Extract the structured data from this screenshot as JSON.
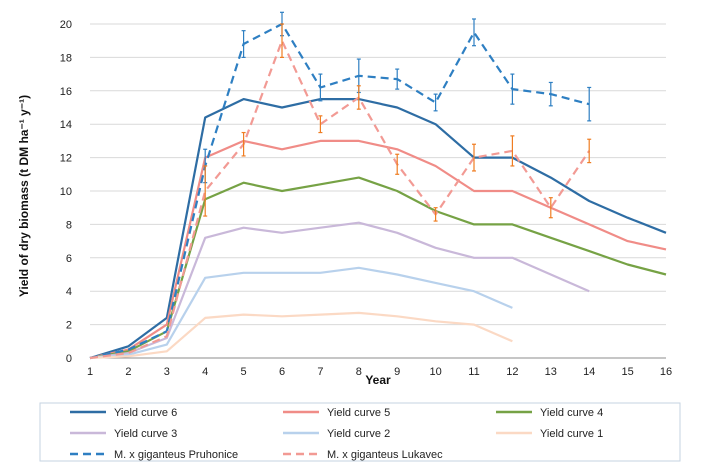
{
  "chart_data": {
    "type": "line",
    "xlabel": "Year",
    "ylabel": "Yield of dry biomass (t DM ha⁻¹ y⁻¹)",
    "xlim": [
      1,
      16
    ],
    "ylim": [
      0,
      20
    ],
    "x_ticks": [
      1,
      2,
      3,
      4,
      5,
      6,
      7,
      8,
      9,
      10,
      11,
      12,
      13,
      14,
      15,
      16
    ],
    "y_ticks": [
      0,
      2,
      4,
      6,
      8,
      10,
      12,
      14,
      16,
      18,
      20
    ],
    "grid": "horizontal",
    "legend_placement": "bottom",
    "series": [
      {
        "name": "Yield curve 6",
        "color": "#2e6da4",
        "dash": "solid",
        "x": [
          1,
          2,
          3,
          4,
          5,
          6,
          7,
          8,
          9,
          10,
          11,
          12,
          13,
          14,
          15,
          16
        ],
        "y": [
          0,
          0.7,
          2.4,
          14.4,
          15.5,
          15.0,
          15.5,
          15.5,
          15.0,
          14.0,
          12.0,
          12.0,
          10.8,
          9.4,
          8.4,
          7.5
        ]
      },
      {
        "name": "Yield curve 5",
        "color": "#f08c87",
        "dash": "solid",
        "x": [
          1,
          2,
          3,
          4,
          5,
          6,
          7,
          8,
          9,
          10,
          11,
          12,
          13,
          14,
          15,
          16
        ],
        "y": [
          0,
          0.5,
          2.0,
          12.0,
          13.0,
          12.5,
          13.0,
          13.0,
          12.5,
          11.5,
          10.0,
          10.0,
          9.0,
          8.0,
          7.0,
          6.5
        ]
      },
      {
        "name": "Yield curve 4",
        "color": "#76a245",
        "dash": "solid",
        "x": [
          1,
          2,
          3,
          4,
          5,
          6,
          7,
          8,
          9,
          10,
          11,
          12,
          13,
          14,
          15,
          16
        ],
        "y": [
          0,
          0.4,
          1.6,
          9.5,
          10.5,
          10.0,
          10.4,
          10.8,
          10.0,
          8.8,
          8.0,
          8.0,
          7.2,
          6.4,
          5.6,
          5.0
        ]
      },
      {
        "name": "Yield curve 3",
        "color": "#c9b8d9",
        "dash": "solid",
        "x": [
          1,
          2,
          3,
          4,
          5,
          6,
          7,
          8,
          9,
          10,
          11,
          12,
          13,
          14
        ],
        "y": [
          0,
          0.3,
          1.2,
          7.2,
          7.8,
          7.5,
          7.8,
          8.1,
          7.5,
          6.6,
          6.0,
          6.0,
          5.0,
          4.0
        ]
      },
      {
        "name": "Yield curve 2",
        "color": "#b8d1ec",
        "dash": "solid",
        "x": [
          1,
          2,
          3,
          4,
          5,
          6,
          7,
          8,
          9,
          10,
          11,
          12
        ],
        "y": [
          0,
          0.2,
          0.8,
          4.8,
          5.1,
          5.1,
          5.1,
          5.4,
          5.0,
          4.5,
          4.0,
          3.0
        ]
      },
      {
        "name": "Yield curve 1",
        "color": "#fbd9c4",
        "dash": "solid",
        "x": [
          1,
          2,
          3,
          4,
          5,
          6,
          7,
          8,
          9,
          10,
          11,
          12
        ],
        "y": [
          0,
          0.1,
          0.4,
          2.4,
          2.6,
          2.5,
          2.6,
          2.7,
          2.5,
          2.2,
          2.0,
          1.0
        ]
      },
      {
        "name": "M. x giganteus Pruhonice",
        "color": "#2e7fc2",
        "dash": "dashed",
        "error_color": "#2e7fc2",
        "x": [
          1,
          2,
          3,
          4,
          5,
          6,
          7,
          8,
          9,
          10,
          11,
          12,
          13,
          14
        ],
        "y": [
          0,
          0.5,
          1.6,
          11.5,
          18.8,
          20.0,
          16.2,
          16.9,
          16.7,
          15.3,
          19.5,
          16.1,
          15.8,
          15.2
        ],
        "error": [
          0,
          0,
          0,
          1.0,
          0.8,
          0.7,
          0.8,
          1.0,
          0.6,
          0.5,
          0.8,
          0.9,
          0.7,
          1.0
        ]
      },
      {
        "name": "M. x giganteus Lukavec",
        "color": "#f29a94",
        "dash": "dashed",
        "error_color": "#ef7d22",
        "x": [
          1,
          2,
          3,
          4,
          5,
          6,
          7,
          8,
          9,
          10,
          11,
          12,
          13,
          14
        ],
        "y": [
          0,
          0.3,
          1.3,
          10.0,
          12.8,
          19.0,
          14.0,
          15.6,
          11.6,
          8.6,
          12.0,
          12.4,
          9.0,
          12.4
        ],
        "error": [
          0,
          0,
          0,
          1.5,
          0.7,
          1.0,
          0.5,
          0.7,
          0.6,
          0.4,
          0.8,
          0.9,
          0.6,
          0.7
        ]
      }
    ]
  }
}
